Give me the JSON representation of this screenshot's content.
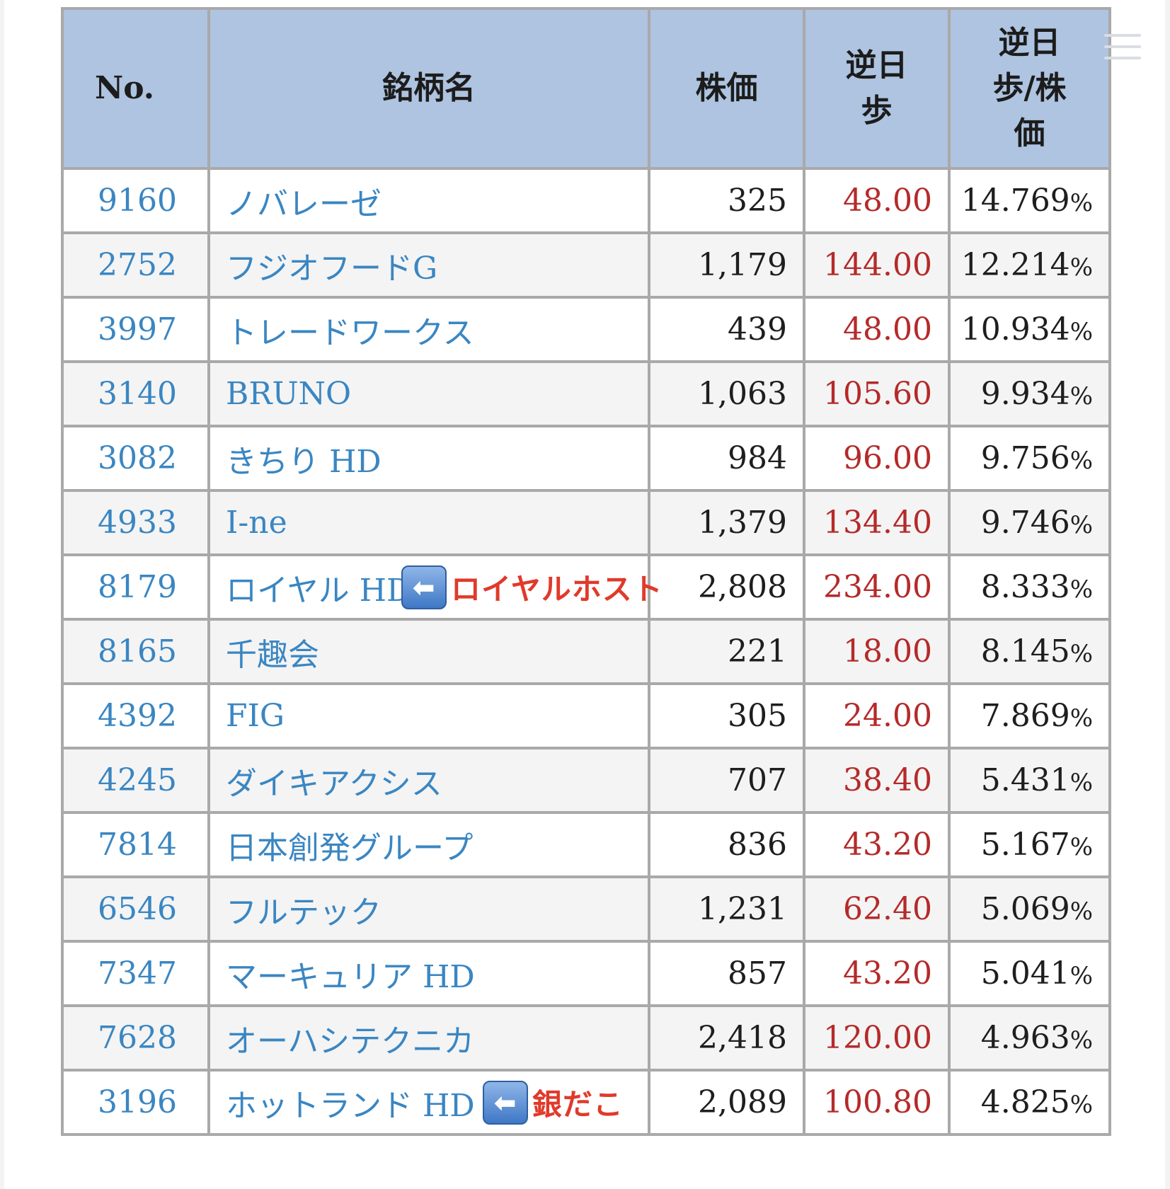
{
  "table": {
    "headers": {
      "no": "No.",
      "name": "銘柄名",
      "price": "株価",
      "dividend_line1": "逆日",
      "dividend_line2": "歩",
      "ratio_line1": "逆日",
      "ratio_line2": "歩/株",
      "ratio_line3": "価"
    },
    "rows": [
      {
        "code": "9160",
        "name": "ノバレーゼ",
        "price": "325",
        "div": "48.00",
        "yield": "14.769",
        "pct": "%"
      },
      {
        "code": "2752",
        "name": "フジオフードG",
        "price": "1,179",
        "div": "144.00",
        "yield": "12.214",
        "pct": "%"
      },
      {
        "code": "3997",
        "name": "トレードワークス",
        "price": "439",
        "div": "48.00",
        "yield": "10.934",
        "pct": "%"
      },
      {
        "code": "3140",
        "name": "BRUNO",
        "price": "1,063",
        "div": "105.60",
        "yield": "9.934",
        "pct": "%"
      },
      {
        "code": "3082",
        "name": "きちり HD",
        "price": "984",
        "div": "96.00",
        "yield": "9.756",
        "pct": "%"
      },
      {
        "code": "4933",
        "name": "I-ne",
        "price": "1,379",
        "div": "134.40",
        "yield": "9.746",
        "pct": "%"
      },
      {
        "code": "8179",
        "name": "ロイヤル HD",
        "price": "2,808",
        "div": "234.00",
        "yield": "8.333",
        "pct": "%",
        "note": "ロイヤルホスト"
      },
      {
        "code": "8165",
        "name": "千趣会",
        "price": "221",
        "div": "18.00",
        "yield": "8.145",
        "pct": "%"
      },
      {
        "code": "4392",
        "name": "FIG",
        "price": "305",
        "div": "24.00",
        "yield": "7.869",
        "pct": "%"
      },
      {
        "code": "4245",
        "name": "ダイキアクシス",
        "price": "707",
        "div": "38.40",
        "yield": "5.431",
        "pct": "%"
      },
      {
        "code": "7814",
        "name": "日本創発グループ",
        "price": "836",
        "div": "43.20",
        "yield": "5.167",
        "pct": "%"
      },
      {
        "code": "6546",
        "name": "フルテック",
        "price": "1,231",
        "div": "62.40",
        "yield": "5.069",
        "pct": "%"
      },
      {
        "code": "7347",
        "name": "マーキュリア HD",
        "price": "857",
        "div": "43.20",
        "yield": "5.041",
        "pct": "%"
      },
      {
        "code": "7628",
        "name": "オーハシテクニカ",
        "price": "2,418",
        "div": "120.00",
        "yield": "4.963",
        "pct": "%"
      },
      {
        "code": "3196",
        "name": "ホットランド HD",
        "price": "2,089",
        "div": "100.80",
        "yield": "4.825",
        "pct": "%",
        "note": "銀だこ"
      }
    ]
  },
  "icons": {
    "menu": "hamburger-menu-icon",
    "arrow": "left-arrow-icon",
    "arrow_glyph": "⬅"
  },
  "colors": {
    "header_bg": "#aec4e0",
    "link": "#3a86c2",
    "dividend": "#b52a2a",
    "note": "#e03a2b"
  }
}
